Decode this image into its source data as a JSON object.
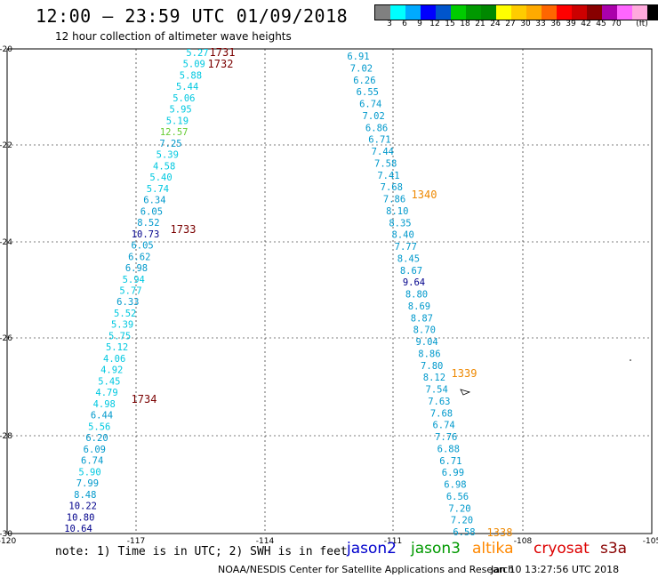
{
  "header": {
    "title": "12:00 — 23:59 UTC 01/09/2018",
    "subtitle": "12 hour collection of altimeter wave heights"
  },
  "color_scale": {
    "unit_label": "(ft)",
    "swatches": [
      "#808080",
      "#00ffff",
      "#00aaff",
      "#0000ff",
      "#0055cc",
      "#00cc00",
      "#009900",
      "#008800",
      "#ffff00",
      "#ffcc00",
      "#ffaa00",
      "#ff6600",
      "#ff0000",
      "#cc0000",
      "#880000",
      "#aa00aa",
      "#ff66ff",
      "#ffaadd",
      "#000000"
    ],
    "labels": [
      "3",
      "6",
      "9",
      "12",
      "15",
      "18",
      "21",
      "24",
      "27",
      "30",
      "33",
      "36",
      "39",
      "42",
      "45",
      "70"
    ]
  },
  "map": {
    "lat_ticks": [
      "-20",
      "-22",
      "-24",
      "-26",
      "-28",
      "-30"
    ],
    "lon_ticks": [
      "-120",
      "-117",
      "-114",
      "-111",
      "-108",
      "-105"
    ],
    "track_west": {
      "values": [
        "5.27",
        "5.09",
        "5.88",
        "5.44",
        "5.06",
        "5.95",
        "5.19",
        "12.57",
        "7.25",
        "5.39",
        "4.58",
        "5.40",
        "5.74",
        "6.34",
        "6.05",
        "8.52",
        "10.73",
        "6.05",
        "6.62",
        "6.98",
        "5.94",
        "5.77",
        "6.33",
        "5.52",
        "5.39",
        "5.75",
        "5.12",
        "4.06",
        "4.92",
        "5.45",
        "4.79",
        "4.98",
        "6.44",
        "5.56",
        "6.20",
        "6.09",
        "6.74",
        "5.90",
        "7.99",
        "8.48",
        "10.22",
        "10.80",
        "10.64"
      ]
    },
    "track_east": {
      "values": [
        "6.91",
        "7.02",
        "6.26",
        "6.55",
        "6.74",
        "7.02",
        "6.86",
        "6.71",
        "7.44",
        "7.58",
        "7.41",
        "7.68",
        "7.86",
        "8.10",
        "8.35",
        "8.40",
        "7.77",
        "8.45",
        "8.67",
        "9.64",
        "8.80",
        "8.69",
        "8.87",
        "8.70",
        "9.04",
        "8.86",
        "7.80",
        "8.12",
        "7.54",
        "7.63",
        "7.68",
        "6.74",
        "7.76",
        "6.88",
        "6.71",
        "6.99",
        "6.98",
        "6.56",
        "7.20",
        "7.20",
        "6.58"
      ]
    },
    "times": {
      "west_1731": "1731",
      "west_1732": "1732",
      "west_1733": "1733",
      "west_1734": "1734",
      "east_1340": "1340",
      "east_1339": "1339",
      "east_1338": "1338"
    },
    "colors": {
      "light": "#00c8e0",
      "mid": "#0099cc",
      "high": "#00008b",
      "green": "#66cc33",
      "red_time": "#7a0000",
      "orange_time": "#ee8800"
    }
  },
  "footer": {
    "note": "note: 1) Time is in UTC; 2) SWH is in feet",
    "legend": [
      {
        "name": "jason2",
        "color": "#0000cc"
      },
      {
        "name": "jason3",
        "color": "#009900"
      },
      {
        "name": "altika",
        "color": "#ff8800"
      },
      {
        "name": "cryosat",
        "color": "#dd0000"
      },
      {
        "name": "s3a",
        "color": "#880000"
      }
    ],
    "credit": "NOAA/NESDIS Center for Satellite Applications and Research",
    "timestamp": "Jan 10 13:27:56 UTC 2018"
  }
}
